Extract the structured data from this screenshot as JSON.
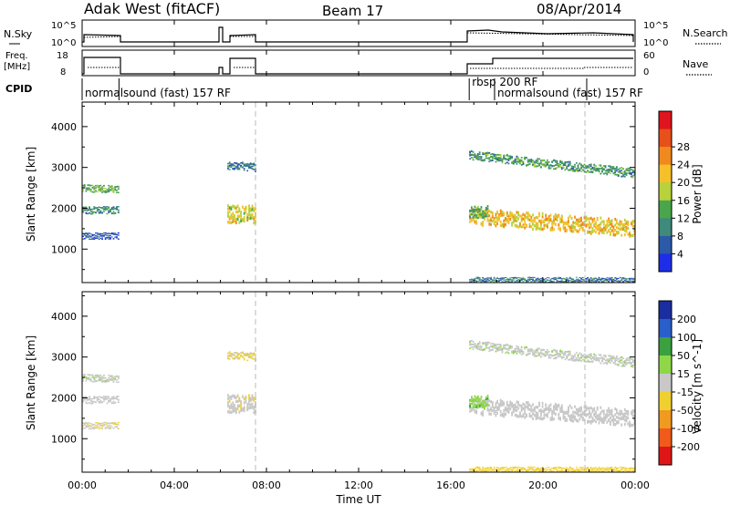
{
  "header": {
    "station": "Adak West (fitACF)",
    "beam": "Beam 17",
    "date": "08/Apr/2014"
  },
  "summary_panels": {
    "nsky_label": "N.Sky",
    "nsky_ticks": [
      "10^5",
      "10^0"
    ],
    "nsearch_label": "N.Search",
    "nsearch_ticks": [
      "10^5",
      "10^0"
    ],
    "freq_label_1": "Freq.",
    "freq_label_2": "[MHz]",
    "freq_ticks": [
      "18",
      "8"
    ],
    "nave_label": "Nave",
    "nave_ticks": [
      "60",
      "0"
    ],
    "cpid_label": "CPID",
    "cpid_segments": [
      {
        "label": "normalsound (fast) 157 RF",
        "start_h": 0.0,
        "end_h": 1.6
      },
      {
        "label": "rbsp 200 RF",
        "start_h": 16.8,
        "end_h": 17.9
      },
      {
        "label": "normalsound (fast) 157 RF",
        "start_h": 17.9,
        "end_h": 21.9
      }
    ]
  },
  "axes": {
    "y_label": "Slant Range [km]",
    "y_ticks": [
      "1000",
      "2000",
      "3000",
      "4000"
    ],
    "x_label": "Time UT",
    "x_ticks": [
      "00:00",
      "04:00",
      "08:00",
      "12:00",
      "16:00",
      "20:00",
      "00:00"
    ]
  },
  "power_colorbar": {
    "label": "Power [dB]",
    "ticks": [
      "4",
      "8",
      "12",
      "16",
      "20",
      "24",
      "28"
    ],
    "colors": [
      "#1e2ee8",
      "#2c59a8",
      "#3f8a7a",
      "#4aa64a",
      "#b8d23c",
      "#f5c02a",
      "#f08a1e",
      "#e8501a",
      "#e0141e"
    ]
  },
  "velocity_colorbar": {
    "label": "Velocity [m s^-1]",
    "ticks": [
      "200",
      "100",
      "50",
      "15",
      "-15",
      "-50",
      "-100",
      "-200"
    ],
    "colors": [
      "#1a2ea0",
      "#2a5ec8",
      "#3aa040",
      "#8ed848",
      "#c8c8c8",
      "#f0d030",
      "#f09a20",
      "#f05a1a",
      "#e01616"
    ]
  },
  "chart_data": {
    "type": "heatmap",
    "panels": [
      "power",
      "velocity"
    ],
    "x_range_hours": [
      0,
      24
    ],
    "y_range_km": [
      180,
      4600
    ],
    "data_gaps_hours": [
      [
        1.6,
        6.3
      ],
      [
        7.5,
        16.8
      ]
    ],
    "bands": [
      {
        "t0": 0.0,
        "t1": 1.6,
        "range_start_km": 2500,
        "range_end_km": 2450,
        "width_km": 180,
        "power_db": 14,
        "velocity": 5
      },
      {
        "t0": 0.0,
        "t1": 1.6,
        "range_start_km": 1950,
        "range_end_km": 1950,
        "width_km": 180,
        "power_db": 10,
        "velocity": 0
      },
      {
        "t0": 0.0,
        "t1": 1.6,
        "range_start_km": 1320,
        "range_end_km": 1320,
        "width_km": 160,
        "power_db": 6,
        "velocity": -10
      },
      {
        "t0": 6.3,
        "t1": 7.5,
        "range_start_km": 3050,
        "range_end_km": 3000,
        "width_km": 200,
        "power_db": 8,
        "velocity": -20
      },
      {
        "t0": 6.3,
        "t1": 7.5,
        "range_start_km": 1850,
        "range_end_km": 1850,
        "width_km": 420,
        "power_db": 20,
        "velocity": -5
      },
      {
        "t0": 16.8,
        "t1": 24.0,
        "range_start_km": 1800,
        "range_end_km": 1500,
        "width_km": 400,
        "power_db": 22,
        "velocity": 0
      },
      {
        "t0": 16.8,
        "t1": 24.0,
        "range_start_km": 3300,
        "range_end_km": 2850,
        "width_km": 220,
        "power_db": 12,
        "velocity": 5
      },
      {
        "t0": 16.8,
        "t1": 17.6,
        "range_start_km": 1900,
        "range_end_km": 1900,
        "width_km": 300,
        "power_db": 14,
        "velocity": 40
      },
      {
        "t0": 16.8,
        "t1": 24.0,
        "range_start_km": 250,
        "range_end_km": 250,
        "width_km": 120,
        "power_db": 8,
        "velocity": -30
      }
    ]
  }
}
